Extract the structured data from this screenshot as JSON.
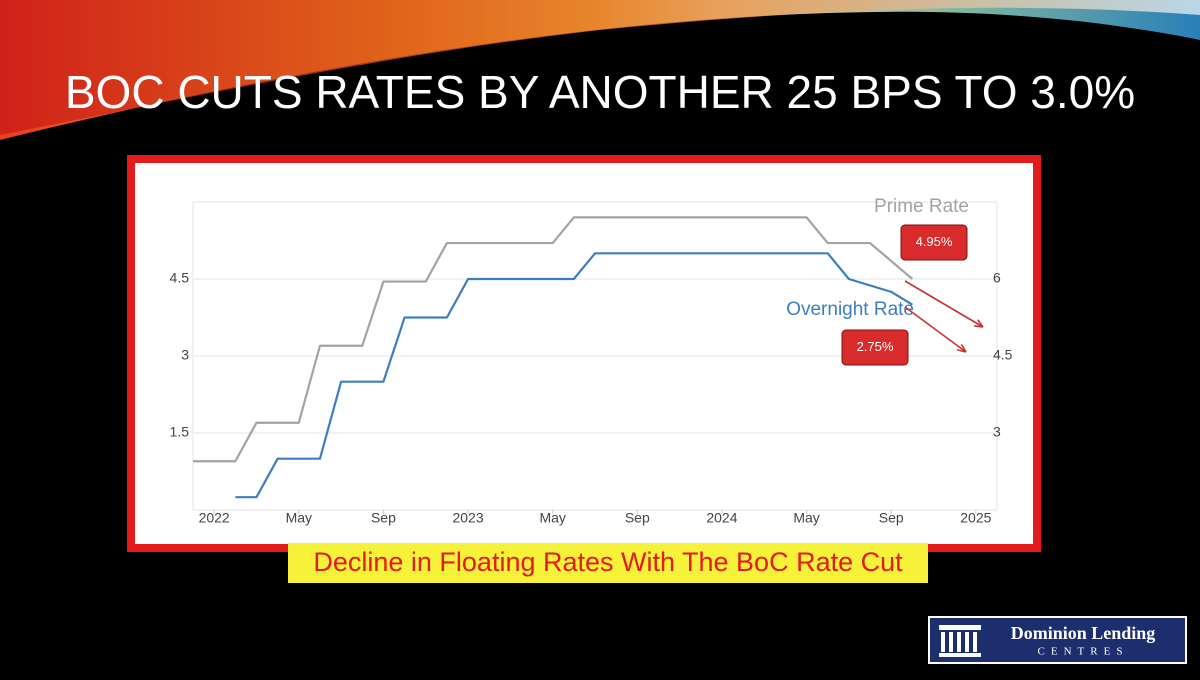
{
  "title": "BOC CUTS RATES BY ANOTHER 25 BPS TO 3.0%",
  "chart_data": {
    "type": "line",
    "series": [
      {
        "name": "Prime Rate",
        "color": "#a3a3a3",
        "axis": "y2",
        "x": [
          "2021-12",
          "2022-02",
          "2022-03",
          "2022-05",
          "2022-06",
          "2022-08",
          "2022-09",
          "2022-11",
          "2022-12",
          "2023-05",
          "2023-06",
          "2024-05",
          "2024-06",
          "2024-08",
          "2024-10"
        ],
        "values": [
          2.45,
          2.45,
          3.2,
          3.2,
          4.7,
          4.7,
          5.95,
          5.95,
          6.7,
          6.7,
          7.2,
          7.2,
          6.7,
          6.7,
          6.0
        ]
      },
      {
        "name": "Overnight Rate",
        "color": "#3d7ebf",
        "x": [
          "2022-02",
          "2022-03",
          "2022-04",
          "2022-06",
          "2022-07",
          "2022-09",
          "2022-10",
          "2022-12",
          "2023-01",
          "2023-06",
          "2023-07",
          "2024-06",
          "2024-07",
          "2024-09",
          "2024-10"
        ],
        "values": [
          0.25,
          0.25,
          1.0,
          1.0,
          2.5,
          2.5,
          3.75,
          3.75,
          4.5,
          4.5,
          5.0,
          5.0,
          4.5,
          4.25,
          4.0
        ]
      }
    ],
    "xlim": [
      "2021-12",
      "2025-02"
    ],
    "xticks": [
      {
        "value": "2022-01",
        "label": "2022"
      },
      {
        "value": "2022-05",
        "label": "May"
      },
      {
        "value": "2022-09",
        "label": "Sep"
      },
      {
        "value": "2023-01",
        "label": "2023"
      },
      {
        "value": "2023-05",
        "label": "May"
      },
      {
        "value": "2023-09",
        "label": "Sep"
      },
      {
        "value": "2024-01",
        "label": "2024"
      },
      {
        "value": "2024-05",
        "label": "May"
      },
      {
        "value": "2024-09",
        "label": "Sep"
      },
      {
        "value": "2025-01",
        "label": "2025"
      }
    ],
    "ylim": [
      0,
      6
    ],
    "yticks": [
      1.5,
      3,
      4.5
    ],
    "y2lim": [
      1.5,
      7.5
    ],
    "y2ticks": [
      3,
      4.5,
      6
    ],
    "grid": true,
    "annotations": [
      "4.95%",
      "2.75%"
    ]
  },
  "caption": "Decline in Floating Rates With The BoC Rate Cut",
  "logo": {
    "name": "Dominion Lending",
    "sub": "CENTRES"
  }
}
